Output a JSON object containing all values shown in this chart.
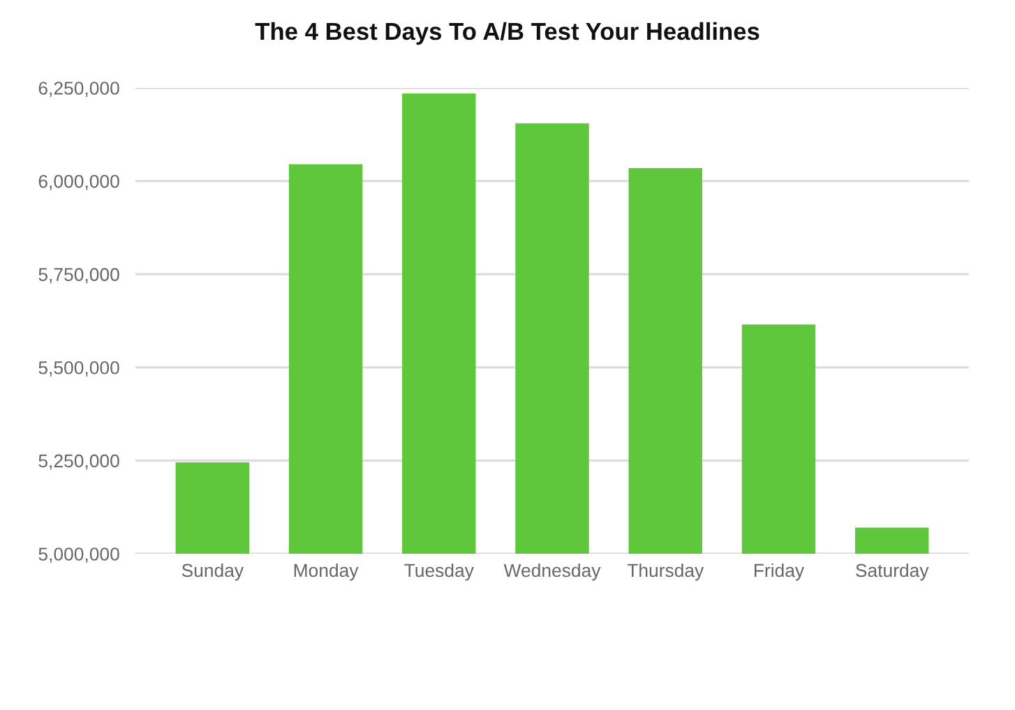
{
  "chart_data": {
    "type": "bar",
    "title": "The 4 Best Days To A/B Test Your Headlines",
    "categories": [
      "Sunday",
      "Monday",
      "Tuesday",
      "Wednesday",
      "Thursday",
      "Friday",
      "Saturday"
    ],
    "values": [
      5245000,
      6045000,
      6235000,
      6155000,
      6035000,
      5615000,
      5070000
    ],
    "color": "#5ec73b",
    "ylim": [
      5000000,
      6250000
    ],
    "yticks": [
      {
        "value": 5000000,
        "label": "5,000,000"
      },
      {
        "value": 5250000,
        "label": "5,250,000"
      },
      {
        "value": 5500000,
        "label": "5,500,000"
      },
      {
        "value": 5750000,
        "label": "5,750,000"
      },
      {
        "value": 6000000,
        "label": "6,000,000"
      },
      {
        "value": 6250000,
        "label": "6,250,000"
      }
    ],
    "grid": "y"
  }
}
